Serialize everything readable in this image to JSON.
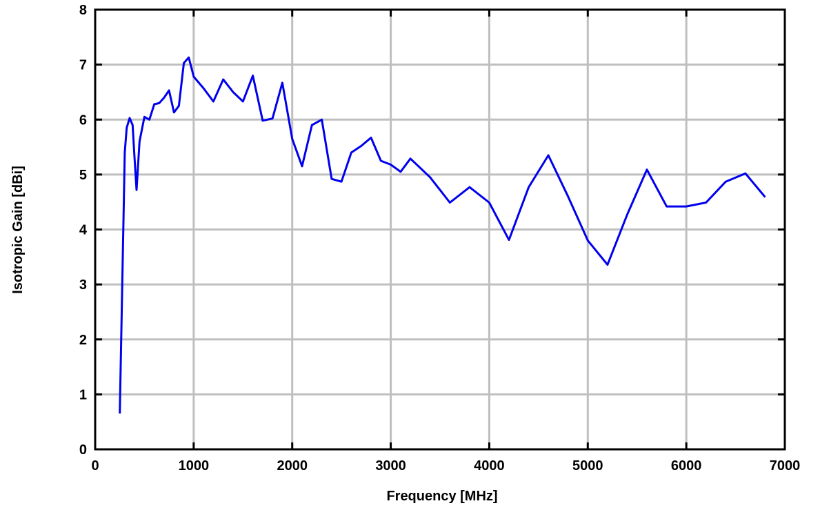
{
  "chart_data": {
    "type": "line",
    "title": "",
    "xlabel": "Frequency [MHz]",
    "ylabel": "Isotropic Gain [dBi]",
    "xlim": [
      0,
      7000
    ],
    "ylim": [
      0,
      8
    ],
    "xticks": [
      0,
      1000,
      2000,
      3000,
      4000,
      5000,
      6000,
      7000
    ],
    "yticks": [
      0,
      1,
      2,
      3,
      4,
      5,
      6,
      7,
      8
    ],
    "grid": true,
    "line_color": "#0000ee",
    "grid_color": "#bfbfbf",
    "series": [
      {
        "x": [
          250,
          300,
          320,
          350,
          380,
          400,
          420,
          450,
          500,
          550,
          600,
          650,
          700,
          750,
          800,
          850,
          900,
          950,
          1000,
          1100,
          1200,
          1300,
          1400,
          1500,
          1600,
          1700,
          1800,
          1900,
          2000,
          2100,
          2200,
          2300,
          2400,
          2500,
          2600,
          2700,
          2800,
          2900,
          3000,
          3100,
          3200,
          3400,
          3600,
          3800,
          4000,
          4200,
          4400,
          4600,
          4800,
          5000,
          5200,
          5400,
          5600,
          5800,
          6000,
          6200,
          6400,
          6600,
          6800
        ],
        "y": [
          0.65,
          5.4,
          5.85,
          6.03,
          5.9,
          5.3,
          4.72,
          5.6,
          6.05,
          6.0,
          6.28,
          6.3,
          6.4,
          6.53,
          6.13,
          6.25,
          7.03,
          7.13,
          6.78,
          6.57,
          6.33,
          6.73,
          6.5,
          6.33,
          6.8,
          5.98,
          6.02,
          6.67,
          5.65,
          5.15,
          5.9,
          6.0,
          4.92,
          4.87,
          5.4,
          5.52,
          5.67,
          5.25,
          5.18,
          5.05,
          5.29,
          4.95,
          4.49,
          4.77,
          4.49,
          3.81,
          4.77,
          5.35,
          4.6,
          3.8,
          3.36,
          4.27,
          5.09,
          4.42,
          4.42,
          4.49,
          4.87,
          5.02,
          4.59
        ]
      }
    ]
  }
}
